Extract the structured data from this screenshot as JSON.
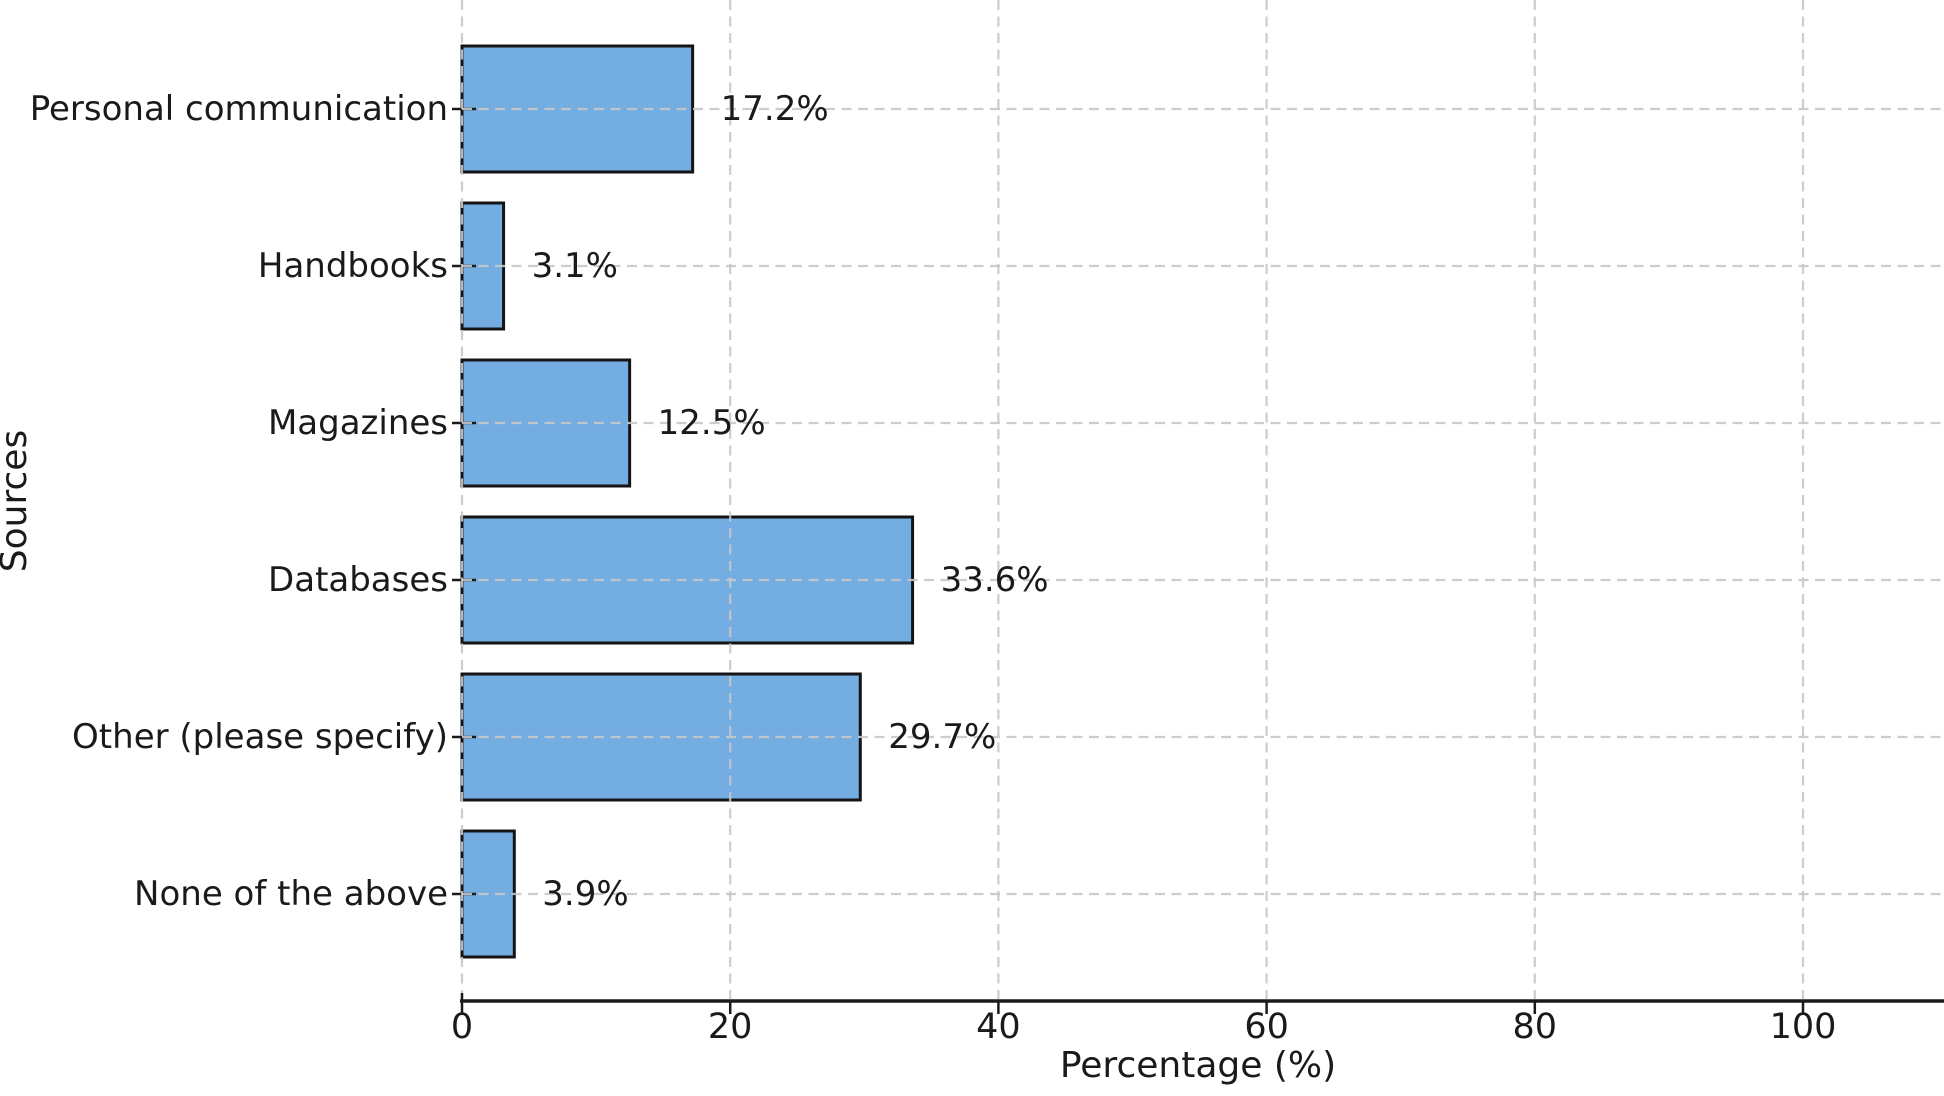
{
  "chart_data": {
    "type": "bar",
    "orientation": "horizontal",
    "xlabel": "Percentage (%)",
    "ylabel": "Sources",
    "categories": [
      "Personal communication",
      "Handbooks",
      "Magazines",
      "Databases",
      "Other (please specify)",
      "None of the above"
    ],
    "values": [
      17.2,
      3.1,
      12.5,
      33.6,
      29.7,
      3.9
    ],
    "value_labels": [
      "17.2%",
      "3.1%",
      "12.5%",
      "33.6%",
      "29.7%",
      "3.9%"
    ],
    "xticks": [
      0,
      20,
      40,
      60,
      80,
      100
    ],
    "xtick_labels": [
      "0",
      "20",
      "40",
      "60",
      "80",
      "100"
    ],
    "xlim": [
      0,
      110.5
    ],
    "grid": "dashed gridlines on both axes, drawn above bars",
    "legend": null,
    "colors": {
      "bar_fill": "#74ade2",
      "bar_edge": "#141414",
      "grid": "#c8c8c8",
      "axis": "#1a1a1a",
      "text": "#1a1a1a",
      "background": "#ffffff"
    }
  }
}
